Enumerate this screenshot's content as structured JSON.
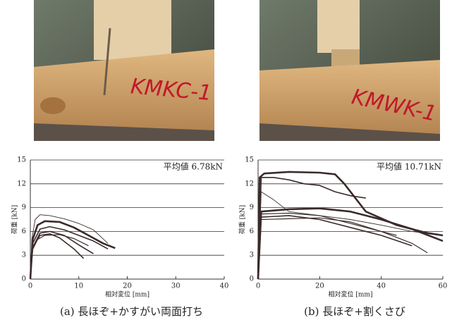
{
  "photos": [
    {
      "label": "KMKC-1"
    },
    {
      "label": "KMWK-1"
    }
  ],
  "chart_data": [
    {
      "type": "line",
      "caption": "(a) 長ほぞ+かすがい両面打ち",
      "annotation": "平均値 6.78kN",
      "xlabel": "相対変位 [mm]",
      "ylabel": "荷重 [kN]",
      "xlim": [
        0,
        40
      ],
      "xticks": [
        0,
        10,
        20,
        30,
        40
      ],
      "ylim": [
        0,
        15
      ],
      "yticks": [
        0,
        3,
        6,
        9,
        12,
        15
      ],
      "grid": true,
      "series": [
        {
          "color": "#3b2b2b",
          "width": 0.9,
          "x": [
            0,
            0.3,
            1,
            2,
            4,
            7,
            10,
            13,
            16
          ],
          "values": [
            0,
            5,
            7.5,
            8.1,
            8,
            7.6,
            7,
            6.2,
            4.5
          ]
        },
        {
          "color": "#3b2b2b",
          "width": 2.6,
          "x": [
            0,
            0.5,
            1.5,
            3,
            6,
            9,
            12,
            15,
            17.5
          ],
          "values": [
            0,
            5,
            6.8,
            7.3,
            7.2,
            6.5,
            5.5,
            4.5,
            3.9
          ]
        },
        {
          "color": "#3b2b2b",
          "width": 1.6,
          "x": [
            0,
            0.5,
            2,
            4,
            7,
            10,
            13,
            16
          ],
          "values": [
            0,
            4.5,
            6.3,
            6.6,
            6.2,
            5.5,
            4.8,
            3.8
          ]
        },
        {
          "color": "#3b2b2b",
          "width": 1.6,
          "x": [
            0,
            0.5,
            2,
            4,
            7,
            10,
            13
          ],
          "values": [
            0,
            4,
            5.8,
            6,
            5.5,
            4.3,
            3.2
          ]
        },
        {
          "color": "#3b2b2b",
          "width": 1.6,
          "x": [
            0,
            0.5,
            2,
            4,
            6,
            9,
            11
          ],
          "values": [
            0,
            4,
            5.5,
            5.7,
            5.2,
            3.8,
            2.6
          ]
        },
        {
          "color": "#3b2b2b",
          "width": 1.2,
          "x": [
            0,
            0.3,
            1.5,
            3,
            6,
            9,
            12
          ],
          "values": [
            0,
            3.5,
            5,
            5.5,
            5.6,
            5.1,
            4.2
          ]
        }
      ]
    },
    {
      "type": "line",
      "caption": "(b) 長ほぞ+割くさび",
      "annotation": "平均値 10.71kN",
      "xlabel": "相対変位 [mm]",
      "ylabel": "荷重 [kN]",
      "xlim": [
        0,
        60
      ],
      "xticks": [
        0,
        20,
        40,
        60
      ],
      "ylim": [
        0,
        15
      ],
      "yticks": [
        0,
        3,
        6,
        9,
        12,
        15
      ],
      "grid": true,
      "series": [
        {
          "color": "#3b2b2b",
          "width": 2.6,
          "x": [
            0,
            0.5,
            2,
            10,
            20,
            25,
            28,
            33,
            35,
            45,
            55,
            60
          ],
          "values": [
            0,
            12.8,
            13.3,
            13.5,
            13.4,
            13.2,
            12,
            9.5,
            8.5,
            6.8,
            5.8,
            5.5
          ]
        },
        {
          "color": "#3b2b2b",
          "width": 1.6,
          "x": [
            0,
            1,
            5,
            10,
            15,
            20,
            25,
            30,
            35
          ],
          "values": [
            0,
            12.8,
            12.8,
            12.5,
            12,
            11.8,
            11,
            10.5,
            10.2
          ]
        },
        {
          "color": "#3b2b2b",
          "width": 0.9,
          "x": [
            0,
            1,
            5,
            10,
            20,
            30,
            40,
            50,
            60
          ],
          "values": [
            0,
            11,
            10,
            8.5,
            8,
            7.5,
            6.8,
            6,
            5.5
          ]
        },
        {
          "color": "#3b2b2b",
          "width": 2.6,
          "x": [
            0,
            1,
            10,
            20,
            30,
            40,
            50,
            60
          ],
          "values": [
            0,
            8.5,
            8.8,
            8.9,
            8.5,
            7.5,
            6.3,
            4.8
          ]
        },
        {
          "color": "#3b2b2b",
          "width": 1.2,
          "x": [
            0,
            1,
            10,
            20,
            30,
            40,
            50,
            55
          ],
          "values": [
            0,
            7.5,
            7.6,
            7.7,
            7.2,
            6,
            4.5,
            3.3
          ]
        },
        {
          "color": "#3b2b2b",
          "width": 1.6,
          "x": [
            0,
            1,
            10,
            20,
            30,
            40,
            50
          ],
          "values": [
            0,
            7.8,
            8,
            7.5,
            6.5,
            5.5,
            4.2
          ]
        },
        {
          "color": "#3b2b2b",
          "width": 1.2,
          "x": [
            0,
            1,
            10,
            20,
            30,
            40,
            45
          ],
          "values": [
            0,
            8.2,
            8.3,
            8,
            7,
            6,
            5.5
          ]
        }
      ]
    }
  ]
}
